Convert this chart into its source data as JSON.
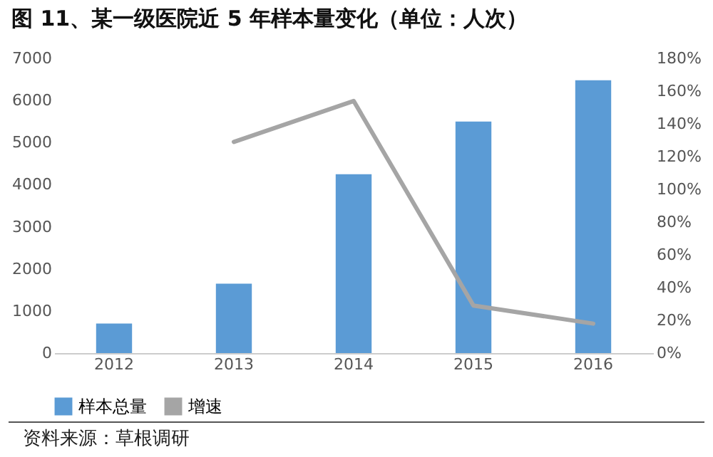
{
  "chart_data": {
    "type": "bar",
    "title": "图 11、某一级医院近 5 年样本量变化（单位：人次）",
    "categories": [
      "2012",
      "2013",
      "2014",
      "2015",
      "2016"
    ],
    "series": [
      {
        "name": "样本总量",
        "color": "#5b9bd5",
        "values": [
          700,
          1650,
          4250,
          5500,
          6480
        ]
      },
      {
        "name": "增速",
        "type": "line",
        "axis": "y2",
        "color": "#a5a5a5",
        "values": [
          null,
          129,
          154,
          29,
          18
        ]
      }
    ],
    "ylim": [
      0,
      7000
    ],
    "yticks": [
      0,
      1000,
      2000,
      3000,
      4000,
      5000,
      6000,
      7000
    ],
    "y2lim": [
      0,
      180
    ],
    "y2ticks": [
      {
        "value": 0,
        "label": "0%"
      },
      {
        "value": 20,
        "label": "20%"
      },
      {
        "value": 40,
        "label": "40%"
      },
      {
        "value": 60,
        "label": "60%"
      },
      {
        "value": 80,
        "label": "80%"
      },
      {
        "value": 100,
        "label": "100%"
      },
      {
        "value": 120,
        "label": "120%"
      },
      {
        "value": 140,
        "label": "140%"
      },
      {
        "value": 160,
        "label": "160%"
      },
      {
        "value": 180,
        "label": "180%"
      }
    ],
    "grid": false,
    "legend": "bottom",
    "annotations": [
      "资料来源：草根调研"
    ]
  }
}
